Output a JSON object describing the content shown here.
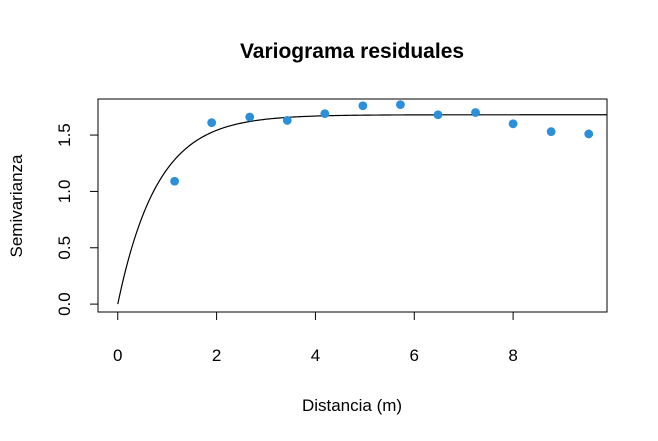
{
  "chart_data": {
    "type": "scatter",
    "title": "Variograma residuales",
    "xlabel": "Distancia (m)",
    "ylabel": "Semivarianza",
    "xlim": [
      -0.4,
      9.9
    ],
    "ylim": [
      -0.07,
      1.82
    ],
    "x_ticks": [
      "0",
      "2",
      "4",
      "6",
      "8"
    ],
    "y_ticks": [
      "0.0",
      "0.5",
      "1.0",
      "1.5"
    ],
    "grid": false,
    "box": true,
    "point_color": "#2b90d9",
    "line_color": "#000000",
    "points": [
      {
        "x": 1.15,
        "y": 1.09
      },
      {
        "x": 1.9,
        "y": 1.61
      },
      {
        "x": 2.67,
        "y": 1.66
      },
      {
        "x": 3.43,
        "y": 1.63
      },
      {
        "x": 4.19,
        "y": 1.69
      },
      {
        "x": 4.96,
        "y": 1.76
      },
      {
        "x": 5.72,
        "y": 1.77
      },
      {
        "x": 6.48,
        "y": 1.68
      },
      {
        "x": 7.24,
        "y": 1.7
      },
      {
        "x": 8.0,
        "y": 1.6
      },
      {
        "x": 8.77,
        "y": 1.53
      },
      {
        "x": 9.53,
        "y": 1.51
      }
    ],
    "model": {
      "type": "exponential",
      "nugget": 0.0,
      "sill": 1.68,
      "range": 0.8,
      "x_max": 9.9
    }
  }
}
